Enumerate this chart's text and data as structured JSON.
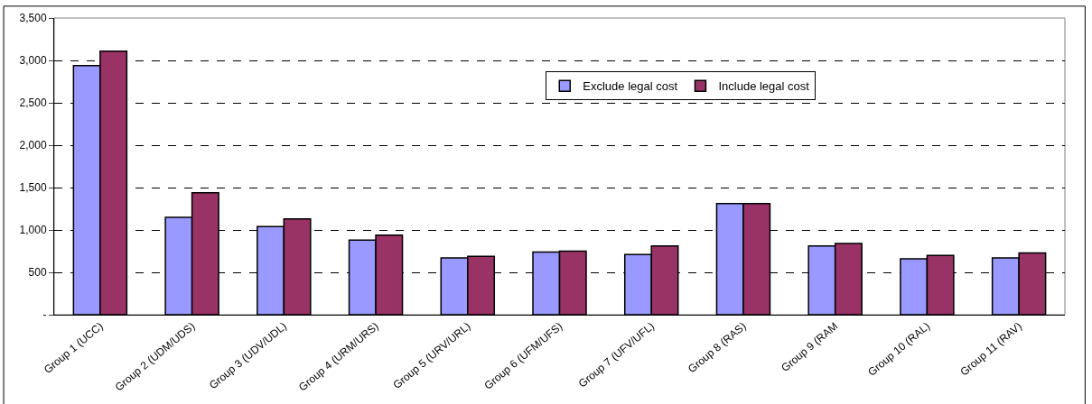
{
  "chart_data": {
    "type": "bar",
    "categories": [
      "Group 1 (UCC)",
      "Group 2 (UDM/UDS)",
      "Group 3 (UDV/UDL)",
      "Group 4 (URM/URS)",
      "Group 5 (URV/URL)",
      "Group 6 (UFM/UFS)",
      "Group 7 (UFV/UFL)",
      "Group 8 (RAS)",
      "Group 9 (RAM",
      "Group 10 (RAL)",
      "Group 11 (RAV)"
    ],
    "series": [
      {
        "name": "Exclude legal cost",
        "color": "#9999ff",
        "values": [
          2940,
          1150,
          1040,
          880,
          670,
          740,
          710,
          1310,
          810,
          660,
          670
        ]
      },
      {
        "name": "Include legal cost",
        "color": "#993366",
        "values": [
          3110,
          1440,
          1130,
          940,
          690,
          750,
          810,
          1310,
          840,
          700,
          730
        ]
      }
    ],
    "ylim": [
      0,
      3500
    ],
    "yticks": [
      {
        "value": 0,
        "label": "-"
      },
      {
        "value": 500,
        "label": "500"
      },
      {
        "value": 1000,
        "label": "1,000"
      },
      {
        "value": 1500,
        "label": "1,500"
      },
      {
        "value": 2000,
        "label": "2,000"
      },
      {
        "value": 2500,
        "label": "2,500"
      },
      {
        "value": 3000,
        "label": "3,000"
      },
      {
        "value": 3500,
        "label": "3,500"
      }
    ],
    "grid": "y",
    "legend": "top"
  }
}
